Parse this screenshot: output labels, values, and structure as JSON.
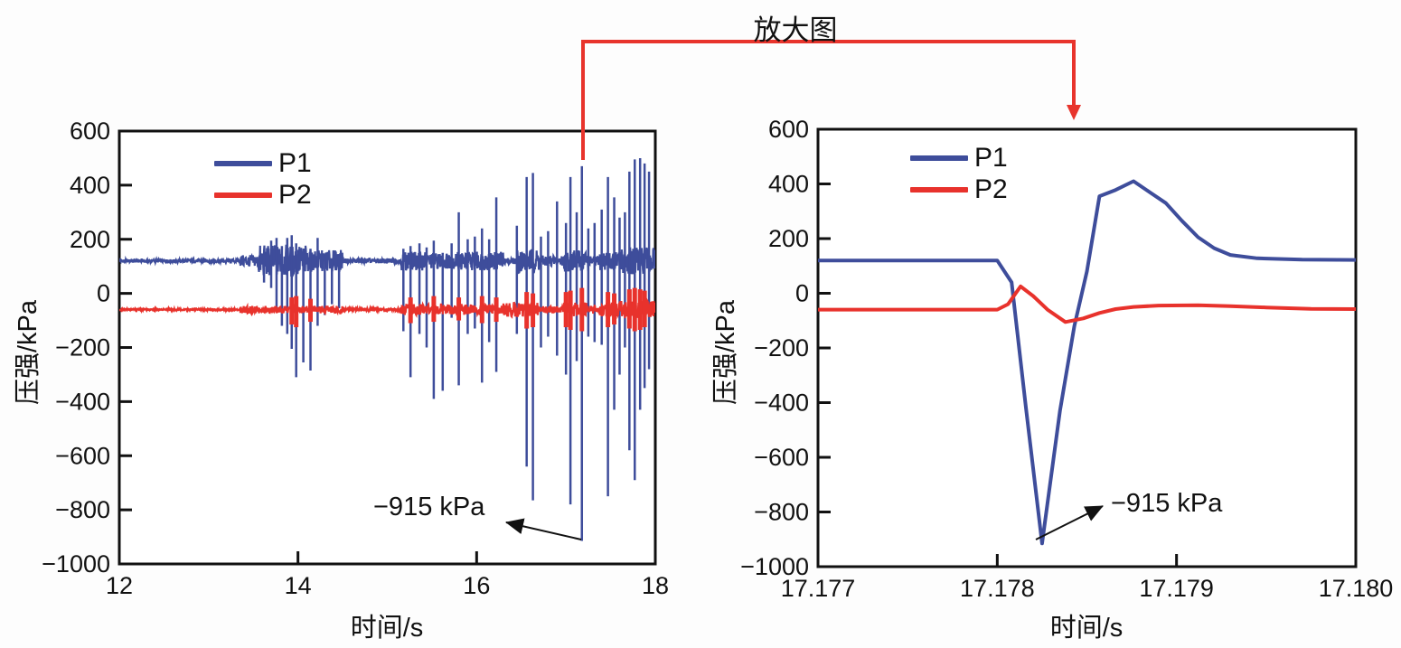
{
  "figure": {
    "background": "#fdfdfd",
    "zoom_callout_label": "放大图"
  },
  "colors": {
    "p1": "#3E4D9B",
    "p2": "#E8322C",
    "connector": "#E8342C",
    "axis": "#111111",
    "annotation": "#111111"
  },
  "legend": {
    "items": [
      {
        "label": "P1",
        "color": "#3E4D9B"
      },
      {
        "label": "P2",
        "color": "#E8322C"
      }
    ]
  },
  "chart_data": [
    {
      "id": "overview",
      "type": "line",
      "xlabel": "时间/s",
      "ylabel": "压强/kPa",
      "xlim": [
        12,
        18
      ],
      "ylim": [
        -1000,
        600
      ],
      "xticks": [
        12,
        14,
        16,
        18
      ],
      "xtick_labels": [
        "12",
        "14",
        "16",
        "18"
      ],
      "yticks": [
        600,
        400,
        200,
        0,
        -200,
        -400,
        -600,
        -800,
        -1000
      ],
      "ytick_labels": [
        "600",
        "400",
        "200",
        "0",
        "−200",
        "−400",
        "−600",
        "−800",
        "−1000"
      ],
      "grid": false,
      "legend_position": "top-left-inside",
      "annotation": {
        "text": "−915 kPa",
        "points_to": {
          "x": 17.178,
          "y": -915
        }
      },
      "series": [
        {
          "name": "P1",
          "color": "#3E4D9B",
          "baseline": 120,
          "noise_bands": [
            [
              12.0,
              13.35,
              6
            ],
            [
              13.35,
              13.55,
              22
            ],
            [
              13.55,
              14.1,
              60
            ],
            [
              14.1,
              14.5,
              40
            ],
            [
              14.5,
              15.15,
              9
            ],
            [
              15.15,
              15.45,
              35
            ],
            [
              15.45,
              15.75,
              30
            ],
            [
              15.75,
              16.3,
              35
            ],
            [
              16.3,
              16.45,
              12
            ],
            [
              16.45,
              16.7,
              45
            ],
            [
              16.7,
              16.98,
              20
            ],
            [
              16.98,
              17.25,
              40
            ],
            [
              17.25,
              17.38,
              18
            ],
            [
              17.38,
              17.6,
              35
            ],
            [
              17.6,
              18.001,
              50
            ]
          ],
          "spikes": [
            [
              13.62,
              40,
              150
            ],
            [
              13.7,
              20,
              195
            ],
            [
              13.76,
              -60,
              205
            ],
            [
              13.82,
              -120,
              175
            ],
            [
              13.88,
              -150,
              205
            ],
            [
              13.93,
              -205,
              215
            ],
            [
              13.98,
              -310,
              185
            ],
            [
              14.06,
              -255,
              150
            ],
            [
              14.14,
              -285,
              165
            ],
            [
              14.22,
              -120,
              205
            ],
            [
              14.3,
              -80,
              135
            ],
            [
              14.38,
              -40,
              120
            ],
            [
              14.46,
              -55,
              145
            ],
            [
              15.18,
              -140,
              165
            ],
            [
              15.26,
              -310,
              175
            ],
            [
              15.36,
              -150,
              185
            ],
            [
              15.44,
              -200,
              170
            ],
            [
              15.52,
              -390,
              195
            ],
            [
              15.62,
              -360,
              150
            ],
            [
              15.72,
              -90,
              185
            ],
            [
              15.8,
              -340,
              300
            ],
            [
              15.9,
              -150,
              200
            ],
            [
              15.98,
              -130,
              210
            ],
            [
              16.06,
              -330,
              240
            ],
            [
              16.14,
              -180,
              200
            ],
            [
              16.22,
              -290,
              355
            ],
            [
              16.45,
              -150,
              250
            ],
            [
              16.56,
              -640,
              430
            ],
            [
              16.63,
              -765,
              445
            ],
            [
              16.72,
              -200,
              210
            ],
            [
              16.8,
              -160,
              230
            ],
            [
              16.9,
              -230,
              340
            ],
            [
              17.0,
              -300,
              260
            ],
            [
              17.05,
              -780,
              430
            ],
            [
              17.12,
              -250,
              300
            ],
            [
              17.178,
              -915,
              470
            ],
            [
              17.25,
              -160,
              240
            ],
            [
              17.32,
              -180,
              260
            ],
            [
              17.4,
              -190,
              310
            ],
            [
              17.47,
              -750,
              430
            ],
            [
              17.54,
              -430,
              355
            ],
            [
              17.6,
              -300,
              280
            ],
            [
              17.66,
              -200,
              300
            ],
            [
              17.71,
              -580,
              450
            ],
            [
              17.77,
              -690,
              495
            ],
            [
              17.83,
              -430,
              500
            ],
            [
              17.88,
              -350,
              480
            ],
            [
              17.93,
              -280,
              450
            ]
          ]
        },
        {
          "name": "P2",
          "color": "#E8322C",
          "baseline": -60,
          "noise_bands": [
            [
              12.0,
              13.35,
              3
            ],
            [
              13.35,
              14.5,
              14
            ],
            [
              14.5,
              15.15,
              6
            ],
            [
              15.15,
              16.3,
              20
            ],
            [
              16.3,
              16.7,
              26
            ],
            [
              16.7,
              16.98,
              14
            ],
            [
              16.98,
              17.25,
              28
            ],
            [
              17.25,
              17.38,
              16
            ],
            [
              17.38,
              17.6,
              26
            ],
            [
              17.6,
              18.001,
              32
            ]
          ],
          "spikes": [
            [
              13.93,
              -115,
              -15
            ],
            [
              13.98,
              -125,
              -10
            ],
            [
              14.14,
              -105,
              -20
            ],
            [
              15.26,
              -110,
              -15
            ],
            [
              15.52,
              -105,
              -10
            ],
            [
              15.8,
              -100,
              -15
            ],
            [
              16.06,
              -110,
              -10
            ],
            [
              16.22,
              -105,
              -15
            ],
            [
              16.56,
              -130,
              5
            ],
            [
              16.63,
              -125,
              0
            ],
            [
              17.0,
              -125,
              5
            ],
            [
              17.05,
              -135,
              10
            ],
            [
              17.178,
              -140,
              20
            ],
            [
              17.47,
              -125,
              5
            ],
            [
              17.54,
              -115,
              0
            ],
            [
              17.71,
              -130,
              15
            ],
            [
              17.77,
              -140,
              20
            ],
            [
              17.83,
              -135,
              15
            ],
            [
              17.88,
              -125,
              10
            ]
          ]
        }
      ]
    },
    {
      "id": "zoomed",
      "type": "line",
      "xlabel": "时间/s",
      "ylabel": "压强/kPa",
      "xlim": [
        17.177,
        17.18
      ],
      "ylim": [
        -1000,
        600
      ],
      "xticks": [
        17.177,
        17.178,
        17.179,
        17.18
      ],
      "xtick_labels": [
        "17.177",
        "17.178",
        "17.179",
        "17.180"
      ],
      "yticks": [
        600,
        400,
        200,
        0,
        -200,
        -400,
        -600,
        -800,
        -1000
      ],
      "ytick_labels": [
        "600",
        "400",
        "200",
        "0",
        "−200",
        "−400",
        "−600",
        "−800",
        "−1000"
      ],
      "grid": false,
      "legend_position": "top-left-inside",
      "annotation": {
        "text": "−915 kPa",
        "points_to": {
          "x": 17.1782,
          "y": -915
        }
      },
      "series": [
        {
          "name": "P1",
          "color": "#3E4D9B",
          "points": [
            [
              17.177,
              120
            ],
            [
              17.178,
              120
            ],
            [
              17.17808,
              40
            ],
            [
              17.17816,
              -420
            ],
            [
              17.17825,
              -915
            ],
            [
              17.17835,
              -430
            ],
            [
              17.17843,
              -120
            ],
            [
              17.1785,
              80
            ],
            [
              17.17857,
              355
            ],
            [
              17.17866,
              378
            ],
            [
              17.17876,
              410
            ],
            [
              17.17885,
              370
            ],
            [
              17.17894,
              330
            ],
            [
              17.17903,
              265
            ],
            [
              17.17912,
              205
            ],
            [
              17.17921,
              165
            ],
            [
              17.1793,
              140
            ],
            [
              17.17945,
              128
            ],
            [
              17.1797,
              123
            ],
            [
              17.18,
              122
            ]
          ]
        },
        {
          "name": "P2",
          "color": "#E8322C",
          "points": [
            [
              17.177,
              -60
            ],
            [
              17.178,
              -60
            ],
            [
              17.17806,
              -40
            ],
            [
              17.17813,
              25
            ],
            [
              17.1782,
              -10
            ],
            [
              17.17828,
              -60
            ],
            [
              17.17838,
              -105
            ],
            [
              17.17848,
              -92
            ],
            [
              17.17857,
              -72
            ],
            [
              17.17866,
              -58
            ],
            [
              17.17876,
              -50
            ],
            [
              17.1789,
              -45
            ],
            [
              17.17912,
              -44
            ],
            [
              17.1793,
              -47
            ],
            [
              17.1795,
              -52
            ],
            [
              17.17975,
              -57
            ],
            [
              17.18,
              -58
            ]
          ]
        }
      ]
    }
  ]
}
